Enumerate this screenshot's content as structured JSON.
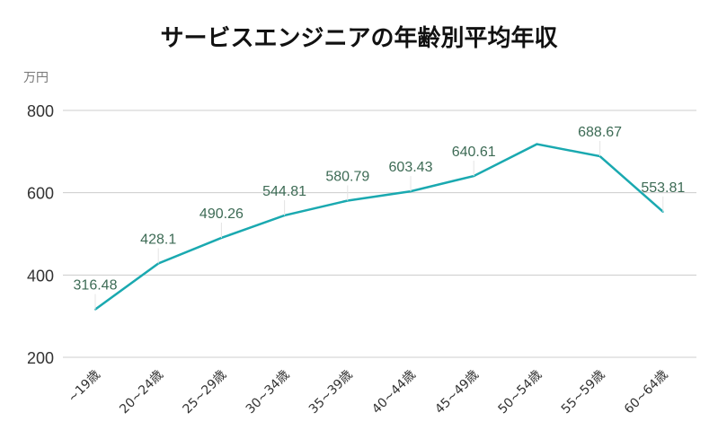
{
  "chart_data": {
    "type": "line",
    "title": "サービスエンジニアの年齢別平均年収",
    "ylabel": "万円",
    "ylim": [
      200,
      800
    ],
    "yticks": [
      200,
      400,
      600,
      800
    ],
    "grid": true,
    "categories": [
      "~19歳",
      "20~24歳",
      "25~29歳",
      "30~34歳",
      "35~39歳",
      "40~44歳",
      "45~49歳",
      "50~54歳",
      "55~59歳",
      "60~64歳"
    ],
    "values": [
      316.48,
      428.1,
      490.26,
      544.81,
      580.79,
      603.43,
      640.61,
      718,
      688.67,
      553.81
    ],
    "data_labels": [
      "316.48",
      "428.1",
      "490.26",
      "544.81",
      "580.79",
      "603.43",
      "640.61",
      null,
      "688.67",
      "553.81"
    ],
    "colors": {
      "line": "#1aa9b0",
      "label": "#3d6b55",
      "grid": "#cccccc"
    }
  }
}
